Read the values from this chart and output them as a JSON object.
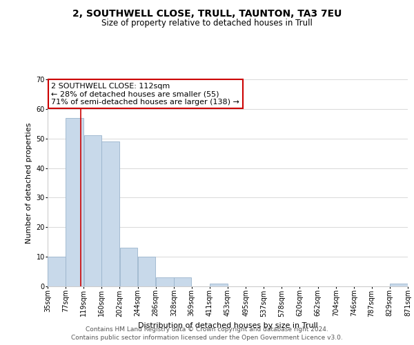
{
  "title_line1": "2, SOUTHWELL CLOSE, TRULL, TAUNTON, TA3 7EU",
  "title_line2": "Size of property relative to detached houses in Trull",
  "xlabel": "Distribution of detached houses by size in Trull",
  "ylabel": "Number of detached properties",
  "bar_color": "#c8d9ea",
  "bar_edge_color": "#9ab4cc",
  "vline_color": "#cc0000",
  "vline_x": 112,
  "bin_edges": [
    35,
    77,
    119,
    160,
    202,
    244,
    286,
    328,
    369,
    411,
    453,
    495,
    537,
    578,
    620,
    662,
    704,
    746,
    787,
    829,
    871
  ],
  "bin_labels": [
    "35sqm",
    "77sqm",
    "119sqm",
    "160sqm",
    "202sqm",
    "244sqm",
    "286sqm",
    "328sqm",
    "369sqm",
    "411sqm",
    "453sqm",
    "495sqm",
    "537sqm",
    "578sqm",
    "620sqm",
    "662sqm",
    "704sqm",
    "746sqm",
    "787sqm",
    "829sqm",
    "871sqm"
  ],
  "bar_heights": [
    10,
    57,
    51,
    49,
    13,
    10,
    3,
    3,
    0,
    1,
    0,
    0,
    0,
    0,
    0,
    0,
    0,
    0,
    0,
    1
  ],
  "ylim": [
    0,
    70
  ],
  "yticks": [
    0,
    10,
    20,
    30,
    40,
    50,
    60,
    70
  ],
  "annotation_line1": "2 SOUTHWELL CLOSE: 112sqm",
  "annotation_line2": "← 28% of detached houses are smaller (55)",
  "annotation_line3": "71% of semi-detached houses are larger (138) →",
  "footer_line1": "Contains HM Land Registry data © Crown copyright and database right 2024.",
  "footer_line2": "Contains public sector information licensed under the Open Government Licence v3.0.",
  "background_color": "#ffffff",
  "grid_color": "#d8d8d8",
  "ann_box_color": "#cc0000",
  "title1_fontsize": 10,
  "title2_fontsize": 8.5,
  "axis_label_fontsize": 8,
  "tick_fontsize": 7,
  "ann_fontsize": 8,
  "footer_fontsize": 6.5
}
